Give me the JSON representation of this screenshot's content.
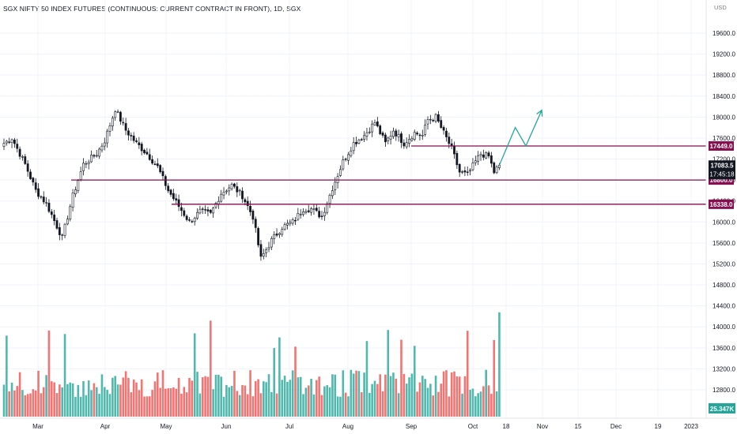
{
  "header": {
    "title": "SGX NIFTY 50 INDEX FUTURES (CONTINUOUS: CURRENT CONTRACT IN FRONT), 1D, SGX",
    "currency": "USD"
  },
  "price_badge": {
    "price": "17083.5",
    "countdown": "17:45:18",
    "color": "#131722"
  },
  "colors": {
    "up": "#26a69a",
    "down": "#ef5350",
    "candle": "#131722",
    "level": "#880e4f",
    "projection": "#26a69a"
  },
  "volume_label": "25.347K",
  "chart_data": {
    "type": "candlestick",
    "title": "SGX NIFTY 50 INDEX FUTURES (CONTINUOUS: CURRENT CONTRACT IN FRONT), 1D, SGX",
    "y_ticks": [
      "19600.0",
      "19200.0",
      "18800.0",
      "18400.0",
      "18000.0",
      "17600.0",
      "17200.0",
      "16800.0",
      "16400.0",
      "16000.0",
      "15600.0",
      "15200.0",
      "14800.0",
      "14400.0",
      "14000.0",
      "13600.0",
      "13200.0",
      "12800.0"
    ],
    "x_ticks": [
      "Mar",
      "Apr",
      "May",
      "Jun",
      "Jul",
      "Aug",
      "Sep",
      "Oct",
      "18",
      "Nov",
      "15",
      "Dec",
      "19",
      "2023"
    ],
    "ylim": [
      12450,
      19900
    ],
    "levels": [
      {
        "label": "17449.0",
        "value": 17449.0
      },
      {
        "label": "16800.0",
        "value": 16800.0
      },
      {
        "label": "16338.0",
        "value": 16338.0
      }
    ],
    "last_price": 17083.5,
    "anchors": [
      {
        "day": 0,
        "price": 17500
      },
      {
        "day": 3,
        "price": 17600
      },
      {
        "day": 8,
        "price": 17100
      },
      {
        "day": 12,
        "price": 16600
      },
      {
        "day": 16,
        "price": 16350
      },
      {
        "day": 22,
        "price": 15700
      },
      {
        "day": 26,
        "price": 16500
      },
      {
        "day": 30,
        "price": 17100
      },
      {
        "day": 35,
        "price": 17300
      },
      {
        "day": 38,
        "price": 17550
      },
      {
        "day": 42,
        "price": 18150
      },
      {
        "day": 46,
        "price": 17750
      },
      {
        "day": 50,
        "price": 17500
      },
      {
        "day": 54,
        "price": 17300
      },
      {
        "day": 58,
        "price": 17050
      },
      {
        "day": 62,
        "price": 16600
      },
      {
        "day": 66,
        "price": 16300
      },
      {
        "day": 70,
        "price": 16000
      },
      {
        "day": 74,
        "price": 16200
      },
      {
        "day": 78,
        "price": 16150
      },
      {
        "day": 82,
        "price": 16550
      },
      {
        "day": 86,
        "price": 16700
      },
      {
        "day": 90,
        "price": 16500
      },
      {
        "day": 94,
        "price": 16100
      },
      {
        "day": 97,
        "price": 15300
      },
      {
        "day": 101,
        "price": 15650
      },
      {
        "day": 105,
        "price": 15900
      },
      {
        "day": 109,
        "price": 16000
      },
      {
        "day": 113,
        "price": 16250
      },
      {
        "day": 116,
        "price": 16250
      },
      {
        "day": 120,
        "price": 16100
      },
      {
        "day": 124,
        "price": 16650
      },
      {
        "day": 128,
        "price": 17150
      },
      {
        "day": 132,
        "price": 17500
      },
      {
        "day": 136,
        "price": 17650
      },
      {
        "day": 140,
        "price": 17900
      },
      {
        "day": 144,
        "price": 17500
      },
      {
        "day": 147,
        "price": 17750
      },
      {
        "day": 151,
        "price": 17500
      },
      {
        "day": 155,
        "price": 17700
      },
      {
        "day": 158,
        "price": 17650
      },
      {
        "day": 160,
        "price": 17950
      },
      {
        "day": 163,
        "price": 18000
      },
      {
        "day": 166,
        "price": 17700
      },
      {
        "day": 169,
        "price": 17400
      },
      {
        "day": 172,
        "price": 16950
      },
      {
        "day": 175,
        "price": 16900
      },
      {
        "day": 178,
        "price": 17150
      },
      {
        "day": 180,
        "price": 17300
      },
      {
        "day": 183,
        "price": 17250
      },
      {
        "day": 185,
        "price": 16950
      },
      {
        "day": 187,
        "price": 17083.5
      }
    ],
    "projection": [
      {
        "day": 187,
        "price": 17083.5
      },
      {
        "day": 193,
        "price": 17800
      },
      {
        "day": 197,
        "price": 17449
      },
      {
        "day": 203,
        "price": 18130
      }
    ]
  }
}
